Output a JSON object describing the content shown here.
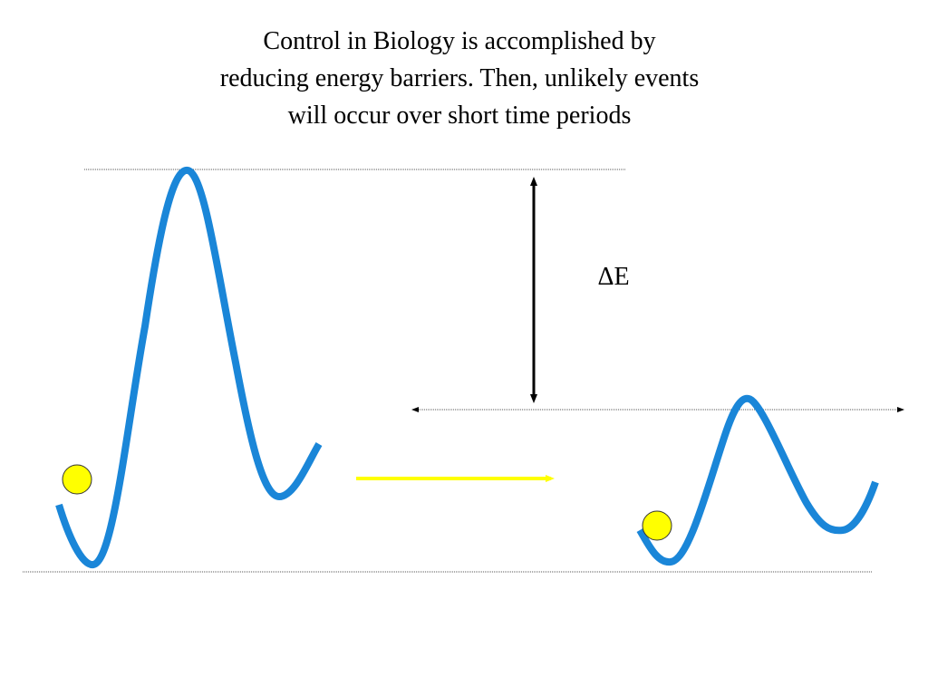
{
  "title": {
    "lines": [
      "Control in Biology is accomplished by",
      "reducing energy barriers.  Then, unlikely events",
      "will occur over short time periods"
    ]
  },
  "labels": {
    "delta_e": "ΔE"
  }
}
